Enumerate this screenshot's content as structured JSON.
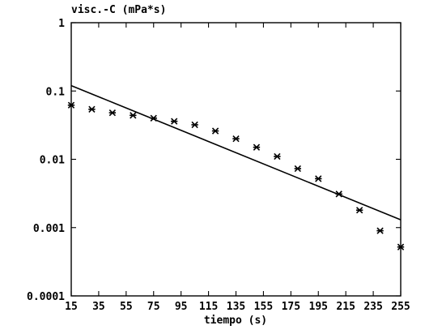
{
  "chart_data": {
    "type": "scatter",
    "title": "",
    "ylabel": "visc.-C (mPa*s)",
    "xlabel": "tiempo (s)",
    "xlim": [
      15,
      255
    ],
    "ylim": [
      0.0001,
      1
    ],
    "yscale": "log",
    "grid": false,
    "x_ticks": [
      15,
      35,
      55,
      75,
      95,
      115,
      135,
      155,
      175,
      195,
      215,
      235,
      255
    ],
    "x_tick_labels": [
      "15",
      "35",
      "55",
      "75",
      "95",
      "115",
      "135",
      "155",
      "175",
      "195",
      "215",
      "235",
      "255"
    ],
    "y_ticks": [
      1,
      0.1,
      0.01,
      0.001,
      0.0001
    ],
    "y_tick_labels": [
      "1",
      "0.1",
      "0.01",
      "0.001",
      "0.0001"
    ],
    "series": [
      {
        "marker": "x-star",
        "color": "#000000",
        "x": [
          15,
          30,
          45,
          60,
          75,
          90,
          105,
          120,
          135,
          150,
          165,
          180,
          195,
          210,
          225,
          240,
          255
        ],
        "y": [
          0.062,
          0.054,
          0.048,
          0.044,
          0.04,
          0.036,
          0.032,
          0.026,
          0.02,
          0.015,
          0.011,
          0.0073,
          0.0052,
          0.0031,
          0.0018,
          0.0009,
          0.00052
        ]
      }
    ],
    "fit_line": {
      "style": "solid",
      "color": "#000000",
      "x": [
        15,
        255
      ],
      "y": [
        0.12,
        0.0013
      ]
    }
  }
}
